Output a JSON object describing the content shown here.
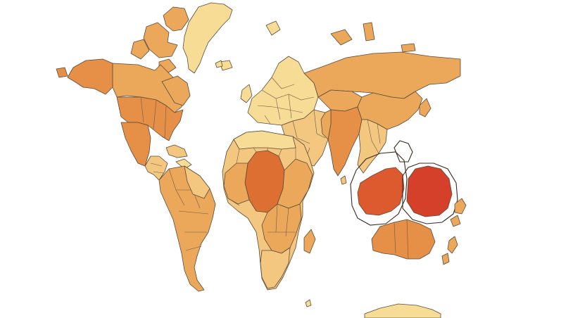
{
  "map": {
    "kind": "cartogram-world-map",
    "background": "#ffffff",
    "palette": {
      "lightest": "#f7dc96",
      "light": "#f3c77f",
      "medium": "#eba85a",
      "medium_dark": "#e58f47",
      "dark": "#dd6f33",
      "darkest": "#d4402a",
      "border": "#5a4a3a"
    },
    "regions": [
      {
        "name": "greenland",
        "shade": "lightest"
      },
      {
        "name": "canada",
        "shade": "medium"
      },
      {
        "name": "alaska",
        "shade": "medium_dark"
      },
      {
        "name": "arctic-islands",
        "shade": "medium"
      },
      {
        "name": "united-states",
        "shade": "medium_dark"
      },
      {
        "name": "mexico",
        "shade": "medium_dark"
      },
      {
        "name": "central-america",
        "shade": "light"
      },
      {
        "name": "caribbean",
        "shade": "light"
      },
      {
        "name": "south-america",
        "shade": "medium"
      },
      {
        "name": "europe",
        "shade": "lightest"
      },
      {
        "name": "russia",
        "shade": "medium"
      },
      {
        "name": "middle-east",
        "shade": "light"
      },
      {
        "name": "africa",
        "shade": "light"
      },
      {
        "name": "central-africa",
        "shade": "dark"
      },
      {
        "name": "south-asia",
        "shade": "medium_dark"
      },
      {
        "name": "china",
        "shade": "medium"
      },
      {
        "name": "southeast-asia",
        "shade": "light"
      },
      {
        "name": "maritime-southeast-asia",
        "shade": "darkest"
      },
      {
        "name": "pacific-islands",
        "shade": "darkest"
      },
      {
        "name": "australia",
        "shade": "medium_dark"
      },
      {
        "name": "new-zealand",
        "shade": "medium"
      },
      {
        "name": "antarctica",
        "shade": "lightest"
      }
    ]
  }
}
